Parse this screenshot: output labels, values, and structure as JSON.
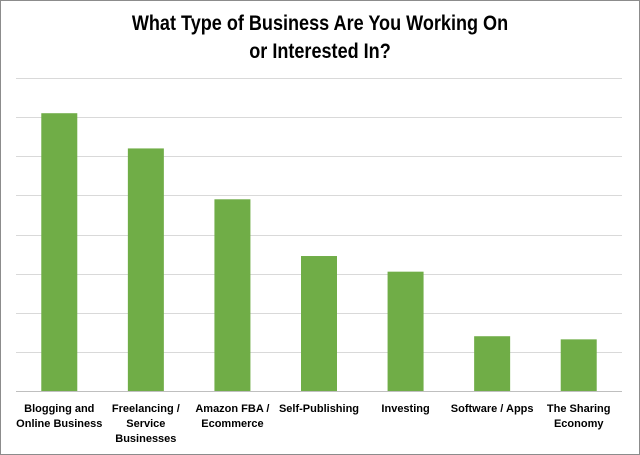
{
  "chart_data": {
    "type": "bar",
    "title": "What Type of Business Are You Working On\nor Interested In?",
    "categories": [
      [
        "Blogging and",
        "Online Business"
      ],
      [
        "Freelancing /",
        "Service",
        "Businesses"
      ],
      [
        "Amazon FBA /",
        "Ecommerce"
      ],
      [
        "Self-Publishing"
      ],
      [
        "Investing"
      ],
      [
        "Software / Apps"
      ],
      [
        "The Sharing",
        "Economy"
      ]
    ],
    "values": [
      7.1,
      6.2,
      4.9,
      3.45,
      3.05,
      1.4,
      1.32
    ],
    "ylim": [
      0,
      8
    ],
    "grid": true,
    "bar_color": "#70ad47",
    "grid_color": "#d9d9d9"
  }
}
